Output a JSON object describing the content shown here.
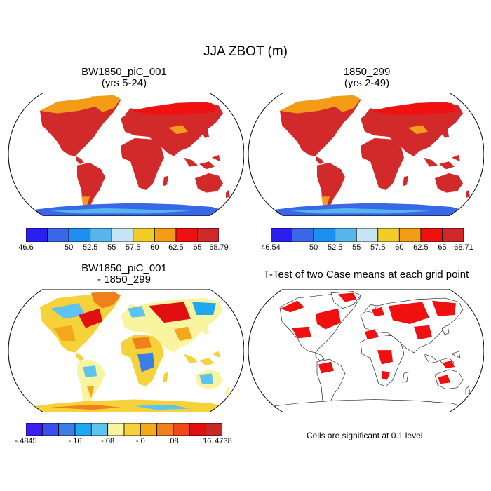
{
  "figure_title": "JJA ZBOT (m)",
  "panels": [
    {
      "title_line1": "BW1850_piC_001",
      "title_line2": "(yrs 5-24)"
    },
    {
      "title_line1": "1850_299",
      "title_line2": "(yrs 2-49)"
    },
    {
      "title_line1": "BW1850_piC_001",
      "title_line2": "- 1850_299"
    },
    {
      "title_line1": "T-Test of two Case means at each grid point",
      "title_line2": ""
    }
  ],
  "colorbars": [
    {
      "labels": [
        "46.6",
        "50",
        "52.5",
        "55",
        "57.5",
        "60",
        "62.5",
        "65",
        "68.79"
      ],
      "colors": [
        "#2b1ef0",
        "#3a67e6",
        "#1c8ff0",
        "#55b5ec",
        "#c5e4f4",
        "#f2cd2a",
        "#f29c18",
        "#f01010",
        "#d02828"
      ]
    },
    {
      "labels": [
        "46.54",
        "50",
        "52.5",
        "55",
        "57.5",
        "60",
        "62.5",
        "65",
        "68.71"
      ],
      "colors": [
        "#2b1ef0",
        "#3a67e6",
        "#1c8ff0",
        "#55b5ec",
        "#c5e4f4",
        "#f2cd2a",
        "#f29c18",
        "#f01010",
        "#d02828"
      ]
    },
    {
      "labels": [
        "-.4845",
        "-.16",
        "-.08",
        "-.0",
        ".08",
        ".16",
        ".4738"
      ],
      "colors": [
        "#3c1ef2",
        "#3a50ee",
        "#3a7fe8",
        "#1ea8f0",
        "#5cc4ee",
        "#f8f4a0",
        "#f6d23a",
        "#f4a81a",
        "#f0801a",
        "#f04818",
        "#e01010",
        "#c82828"
      ]
    }
  ],
  "significance_note": "Cells are significant at 0.1 level"
}
